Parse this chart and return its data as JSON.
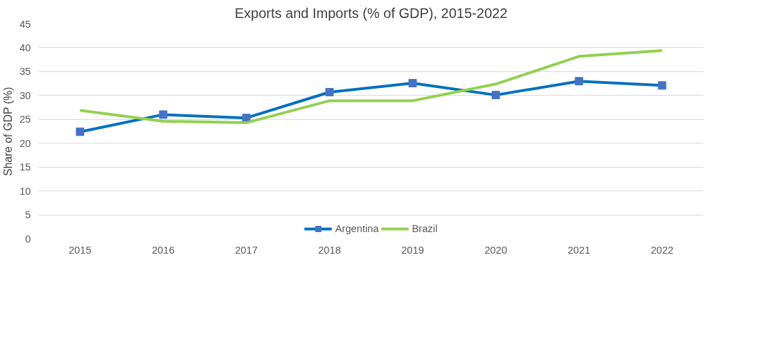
{
  "chart_data": {
    "type": "line",
    "title": "Exports and Imports (% of GDP), 2015-2022",
    "ylabel": "Share of GDP (%)",
    "categories": [
      "2015",
      "2016",
      "2017",
      "2018",
      "2019",
      "2020",
      "2021",
      "2022"
    ],
    "series": [
      {
        "name": "Argentina",
        "color": "#0070c0",
        "marker": "square",
        "values": [
          22.4,
          26.0,
          25.3,
          30.7,
          32.6,
          30.1,
          33.0,
          32.1
        ]
      },
      {
        "name": "Brazil",
        "color": "#92d050",
        "marker": "none",
        "values": [
          26.9,
          24.6,
          24.3,
          28.9,
          28.9,
          32.4,
          38.2,
          39.4
        ]
      }
    ],
    "ylim": [
      0,
      45
    ],
    "yticks": [
      0,
      5,
      10,
      15,
      20,
      25,
      30,
      35,
      40,
      45
    ],
    "grid": "y",
    "legend": "bottom"
  }
}
